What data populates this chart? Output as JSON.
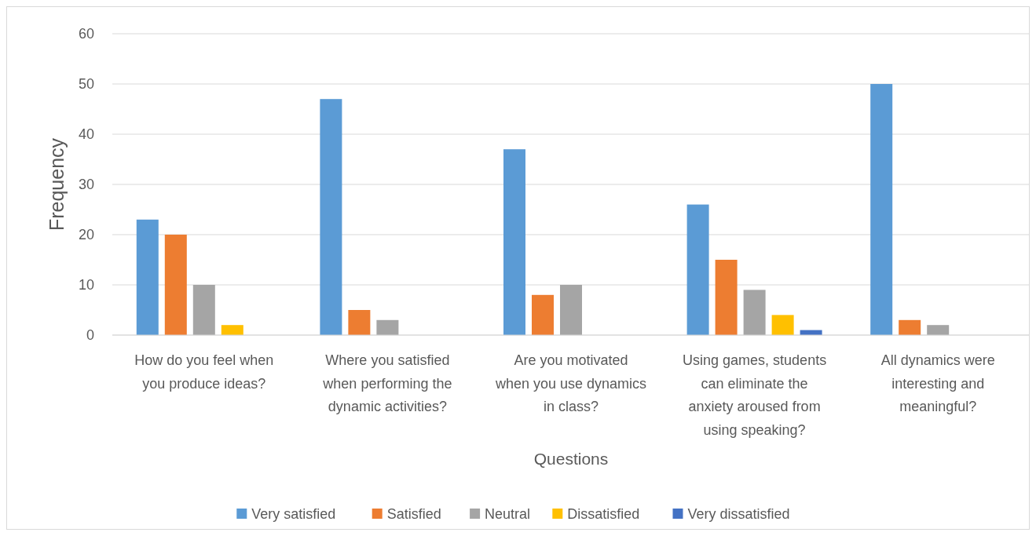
{
  "chart_data": {
    "type": "bar",
    "xlabel": "Questions",
    "ylabel": "Frequency",
    "categories": [
      "How do you feel when you produce ideas?",
      "Where you satisfied when performing the dynamic activities?",
      "Are you motivated when you use dynamics in class?",
      "Using games, students can eliminate the anxiety aroused from using speaking?",
      "All dynamics were interesting and meaningful?"
    ],
    "series": [
      {
        "name": "Very satisfied",
        "color": "#5b9bd5",
        "values": [
          23,
          47,
          37,
          26,
          50
        ]
      },
      {
        "name": "Satisfied",
        "color": "#ed7d31",
        "values": [
          20,
          5,
          8,
          15,
          3
        ]
      },
      {
        "name": "Neutral",
        "color": "#a5a5a5",
        "values": [
          10,
          3,
          10,
          9,
          2
        ]
      },
      {
        "name": "Dissatisfied",
        "color": "#ffc000",
        "values": [
          2,
          0,
          0,
          4,
          0
        ]
      },
      {
        "name": "Very dissatisfied",
        "color": "#4472c4",
        "values": [
          0,
          0,
          0,
          1,
          0
        ]
      }
    ],
    "ylim": [
      0,
      60
    ],
    "yticks": [
      0,
      10,
      20,
      30,
      40,
      50,
      60
    ],
    "grid": "y",
    "legend": "bottom"
  }
}
